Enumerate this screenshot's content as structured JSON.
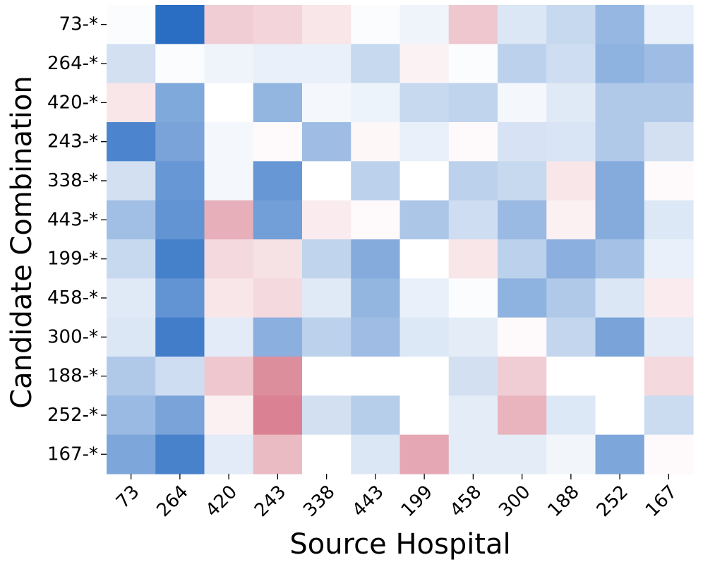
{
  "chart_data": {
    "type": "heatmap",
    "title": "",
    "xlabel": "Source Hospital",
    "ylabel": "Candidate Combination",
    "x_categories": [
      "73",
      "264",
      "420",
      "243",
      "338",
      "443",
      "199",
      "458",
      "300",
      "188",
      "252",
      "167"
    ],
    "y_categories": [
      "73-*",
      "264-*",
      "420-*",
      "243-*",
      "338-*",
      "443-*",
      "199-*",
      "458-*",
      "300-*",
      "188-*",
      "252-*",
      "167-*"
    ],
    "values": [
      [
        0.02,
        0.95,
        -0.2,
        -0.17,
        -0.1,
        0.02,
        0.07,
        -0.22,
        0.16,
        0.25,
        0.47,
        0.1
      ],
      [
        0.2,
        0.02,
        0.07,
        0.1,
        0.1,
        0.25,
        -0.05,
        0.02,
        0.3,
        0.22,
        0.5,
        0.43
      ],
      [
        -0.1,
        0.57,
        0.0,
        0.48,
        0.05,
        0.08,
        0.25,
        0.28,
        0.05,
        0.14,
        0.35,
        0.35
      ],
      [
        0.8,
        0.6,
        0.05,
        -0.02,
        0.43,
        -0.03,
        0.1,
        -0.02,
        0.18,
        0.17,
        0.35,
        0.2
      ],
      [
        0.2,
        0.68,
        0.05,
        0.68,
        0.0,
        0.3,
        0.0,
        0.3,
        0.25,
        -0.1,
        0.55,
        -0.02
      ],
      [
        0.42,
        0.7,
        -0.32,
        0.63,
        -0.08,
        -0.02,
        0.37,
        0.22,
        0.45,
        -0.06,
        0.55,
        0.15
      ],
      [
        0.25,
        0.83,
        -0.15,
        -0.12,
        0.28,
        0.55,
        0.0,
        -0.1,
        0.3,
        0.52,
        0.4,
        0.1
      ],
      [
        0.14,
        0.7,
        -0.1,
        -0.15,
        0.14,
        0.48,
        0.1,
        0.02,
        0.5,
        0.35,
        0.16,
        -0.08
      ],
      [
        0.16,
        0.85,
        0.13,
        0.52,
        0.3,
        0.43,
        0.15,
        0.12,
        -0.02,
        0.27,
        0.6,
        0.13
      ],
      [
        0.35,
        0.22,
        -0.22,
        -0.45,
        0.0,
        0.0,
        0.0,
        0.2,
        -0.2,
        0.0,
        0.0,
        -0.15
      ],
      [
        0.45,
        0.6,
        -0.06,
        -0.5,
        0.2,
        0.32,
        0.0,
        0.12,
        -0.3,
        0.15,
        0.0,
        0.23
      ],
      [
        0.58,
        0.82,
        0.13,
        -0.27,
        0.0,
        0.16,
        -0.35,
        0.12,
        0.12,
        0.06,
        0.58,
        -0.02
      ]
    ],
    "color_scale": {
      "min": -1,
      "max": 1,
      "negative_color": "#b40426",
      "neutral_color": "#ffffff",
      "positive_color": "#1f66c0"
    },
    "grid": false,
    "legend": "none",
    "colorbar": false
  }
}
